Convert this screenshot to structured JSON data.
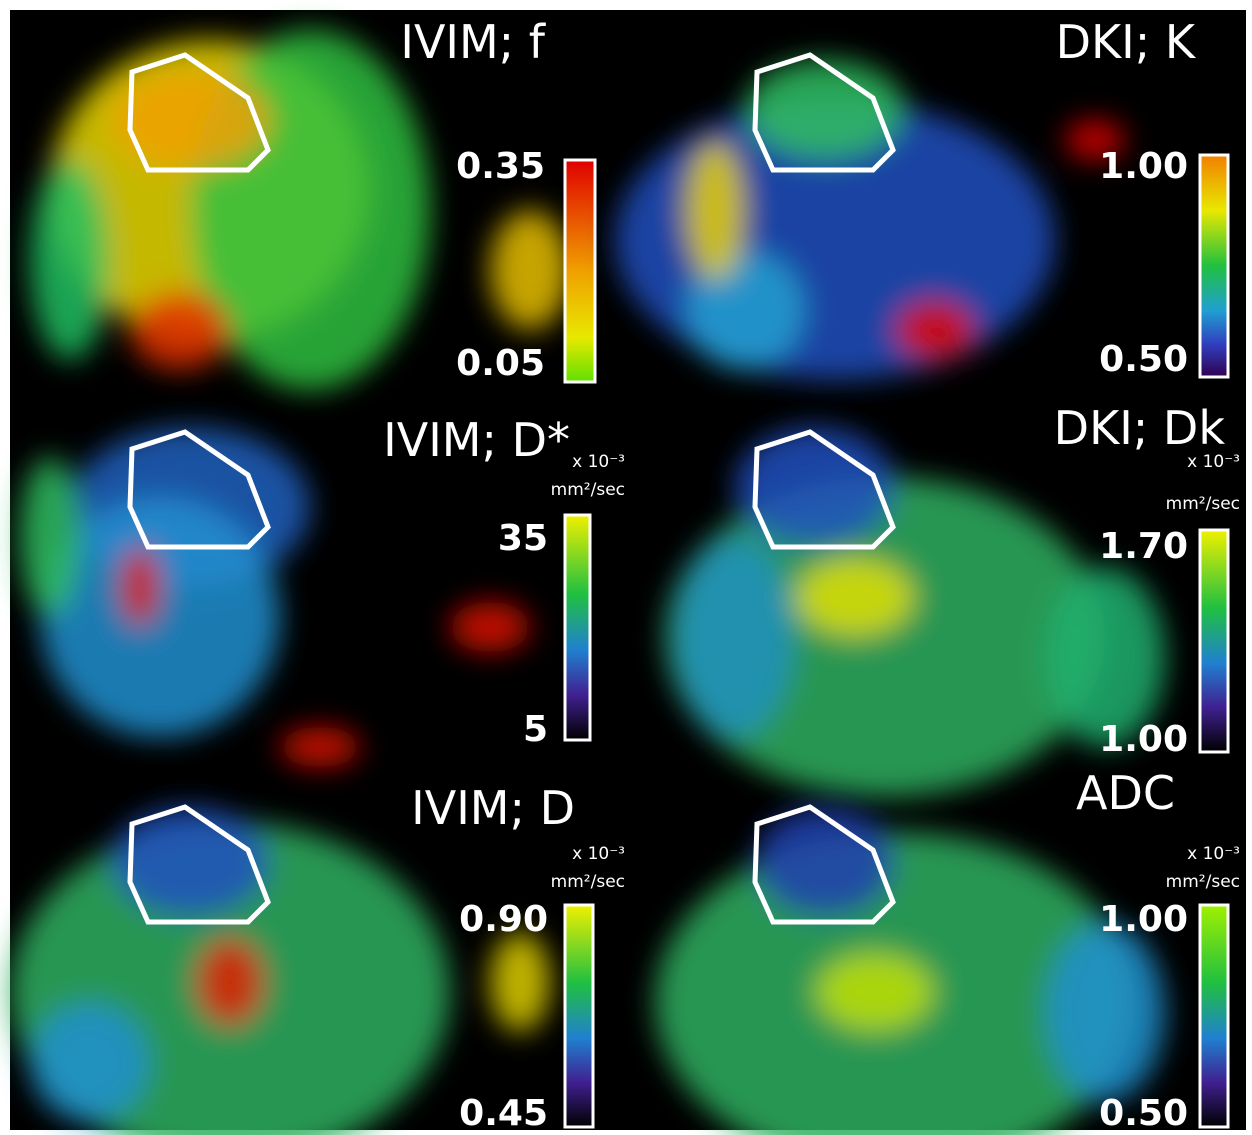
{
  "panels": [
    {
      "title": "IVIM; f",
      "max": "0.35",
      "min": "0.05"
    },
    {
      "title": "DKI; K",
      "max": "1.00",
      "min": "0.50"
    },
    {
      "title": "IVIM; D*",
      "unit": [
        "x 10⁻³",
        "mm²/sec"
      ],
      "max": "35",
      "min": "5"
    },
    {
      "title": "DKI; Dk",
      "unit": [
        "x 10⁻³",
        "mm²/sec"
      ],
      "max": "1.70",
      "min": "1.00"
    },
    {
      "title": "IVIM; D",
      "unit": [
        "x 10⁻³",
        "mm²/sec"
      ],
      "max": "0.90",
      "min": "0.45"
    },
    {
      "title": "ADC",
      "unit": [
        "x 10⁻³",
        "mm²/sec"
      ],
      "max": "1.00",
      "min": "0.50"
    }
  ]
}
